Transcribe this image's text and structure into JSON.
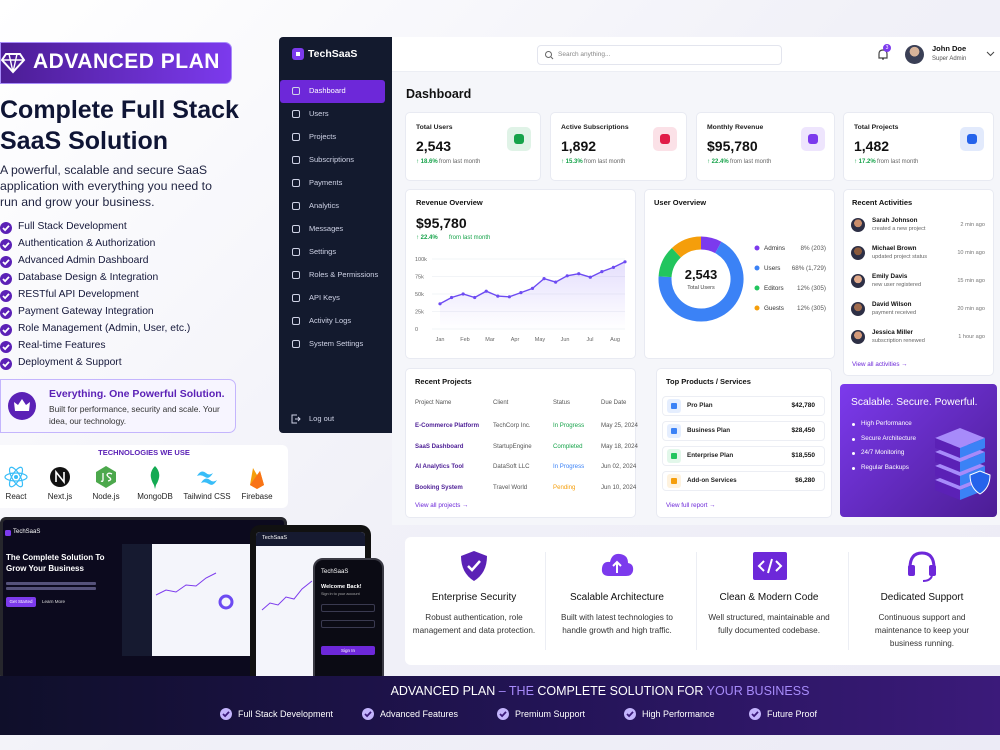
{
  "promo": {
    "badge": "ADVANCED PLAN",
    "headline": [
      "Complete Full Stack",
      "SaaS Solution"
    ],
    "description": "A powerful, scalable and secure SaaS application with everything you need to run and grow your business.",
    "features": [
      "Full Stack Development",
      "Authentication & Authorization",
      "Advanced Admin Dashboard",
      "Database Design & Integration",
      "RESTful API Development",
      "Payment Gateway Integration",
      "Role Management (Admin, User, etc.)",
      "Real-time Features",
      "Deployment & Support"
    ],
    "callout": {
      "title": "Everything. One Powerful Solution.",
      "text": "Built for performance, security and scale. Your idea, our technology."
    },
    "technologies": {
      "heading": "TECHNOLOGIES WE USE",
      "items": [
        "React",
        "Next.js",
        "Node.js",
        "MongoDB",
        "Tailwind CSS",
        "Firebase"
      ]
    }
  },
  "devices": {
    "laptop": {
      "brand": "TechSaaS",
      "headline": "The Complete Solution To Grow Your Business",
      "buttons": [
        "Get Started",
        "Learn More"
      ]
    },
    "tablet": {
      "brand": "TechSaaS"
    },
    "phone": {
      "brand": "TechSaaS",
      "title": "Welcome Back!",
      "subtitle": "Sign in to your account",
      "button": "Sign In"
    }
  },
  "dashboard": {
    "brand": "TechSaaS",
    "nav": [
      "Dashboard",
      "Users",
      "Projects",
      "Subscriptions",
      "Payments",
      "Analytics",
      "Messages",
      "Settings",
      "Roles & Permissions",
      "API Keys",
      "Activity Logs",
      "System Settings"
    ],
    "logout": "Log out",
    "search_placeholder": "Search anything...",
    "notifications": "3",
    "user": {
      "name": "John Doe",
      "role": "Super Admin"
    },
    "page_title": "Dashboard",
    "stats": [
      {
        "label": "Total Users",
        "value": "2,543",
        "change": "↑ 18.6%",
        "note": "from last month",
        "icon_color": "#16a34a"
      },
      {
        "label": "Active Subscriptions",
        "value": "1,892",
        "change": "↑ 15.3%",
        "note": "from last month",
        "icon_color": "#e11d48"
      },
      {
        "label": "Monthly Revenue",
        "value": "$95,780",
        "change": "↑ 22.4%",
        "note": "from last month",
        "icon_color": "#7c3aed"
      },
      {
        "label": "Total Projects",
        "value": "1,482",
        "change": "↑ 17.2%",
        "note": "from last month",
        "icon_color": "#2563eb"
      }
    ],
    "revenue": {
      "title": "Revenue Overview",
      "total": "$95,780",
      "change": "↑ 22.4%",
      "note": "from last month",
      "chart": {
        "type": "line",
        "color": "#6d4bf2",
        "values": [
          36000,
          45000,
          50000,
          45000,
          54000,
          47000,
          46000,
          52000,
          58000,
          72000,
          67000,
          76000,
          79000,
          74000,
          82000,
          88000,
          96000
        ],
        "x_labels": [
          "Jan",
          "Feb",
          "Mar",
          "Apr",
          "May",
          "Jun",
          "Jul",
          "Aug"
        ],
        "ylim": [
          0,
          100000
        ],
        "yticks": [
          {
            "value": 0,
            "label": "0"
          },
          {
            "value": 25000,
            "label": "25k"
          },
          {
            "value": 50000,
            "label": "50k"
          },
          {
            "value": 75000,
            "label": "75k"
          },
          {
            "value": 100000,
            "label": "100k"
          }
        ],
        "grid": true
      }
    },
    "user_overview": {
      "title": "User Overview",
      "total": "2,543",
      "total_label": "Total Users",
      "chart": {
        "type": "donut",
        "categories": [
          "Admins",
          "Users",
          "Editors",
          "Guests"
        ],
        "values": [
          8,
          68,
          12,
          12
        ],
        "value_labels": [
          "8% (203)",
          "68% (1,729)",
          "12% (305)",
          "12% (305)"
        ],
        "colors": [
          "#7c3aed",
          "#3b82f6",
          "#22c55e",
          "#f59e0b"
        ]
      }
    },
    "activities": {
      "title": "Recent Activities",
      "items": [
        {
          "name": "Sarah Johnson",
          "action": "created a new project",
          "time": "2 min ago"
        },
        {
          "name": "Michael Brown",
          "action": "updated project status",
          "time": "10 min ago"
        },
        {
          "name": "Emily Davis",
          "action": "new user registered",
          "time": "15 min ago"
        },
        {
          "name": "David Wilson",
          "action": "payment received",
          "time": "20 min ago"
        },
        {
          "name": "Jessica Miller",
          "action": "subscription renewed",
          "time": "1 hour ago"
        }
      ],
      "link": "View all activities →"
    },
    "projects": {
      "title": "Recent Projects",
      "columns": [
        "Project Name",
        "Client",
        "Status",
        "Due Date"
      ],
      "rows": [
        {
          "name": "E-Commerce Platform",
          "client": "TechCorp Inc.",
          "status": "In Progress",
          "due": "May 25, 2024",
          "status_color": "#16a34a"
        },
        {
          "name": "SaaS Dashboard",
          "client": "StartupEngine",
          "status": "Completed",
          "due": "May 18, 2024",
          "status_color": "#16a34a"
        },
        {
          "name": "AI Analytics Tool",
          "client": "DataSoft LLC",
          "status": "In Progress",
          "due": "Jun 02, 2024",
          "status_color": "#3b82f6"
        },
        {
          "name": "Booking System",
          "client": "Travel World",
          "status": "Pending",
          "due": "Jun 10, 2024",
          "status_color": "#f59e0b"
        }
      ],
      "link": "View all projects →"
    },
    "products": {
      "title": "Top Products / Services",
      "items": [
        {
          "name": "Pro Plan",
          "amount": "$42,780",
          "color": "#3b82f6"
        },
        {
          "name": "Business Plan",
          "amount": "$28,450",
          "color": "#3b82f6"
        },
        {
          "name": "Enterprise Plan",
          "amount": "$18,550",
          "color": "#22c55e"
        },
        {
          "name": "Add-on Services",
          "amount": "$6,280",
          "color": "#f59e0b"
        }
      ],
      "link": "View full report →"
    },
    "promo_card": {
      "title": "Scalable. Secure. Powerful.",
      "items": [
        "High Performance",
        "Secure Architecture",
        "24/7 Monitoring",
        "Regular Backups"
      ]
    }
  },
  "highlights": [
    {
      "title": "Enterprise Security",
      "text": "Robust authentication, role management and data protection."
    },
    {
      "title": "Scalable Architecture",
      "text": "Built with latest technologies to handle growth and high traffic."
    },
    {
      "title": "Clean & Modern Code",
      "text": "Well structured, maintainable and fully documented codebase."
    },
    {
      "title": "Dedicated Support",
      "text": "Continuous support and maintenance to keep your business running."
    }
  ],
  "footer": {
    "title_parts": [
      "ADVANCED PLAN",
      " – ",
      "THE",
      " COMPLETE SOLUTION FOR ",
      "YOUR BUSINESS"
    ],
    "items": [
      "Full Stack Development",
      "Advanced Features",
      "Premium Support",
      "High Performance",
      "Future Proof"
    ]
  }
}
